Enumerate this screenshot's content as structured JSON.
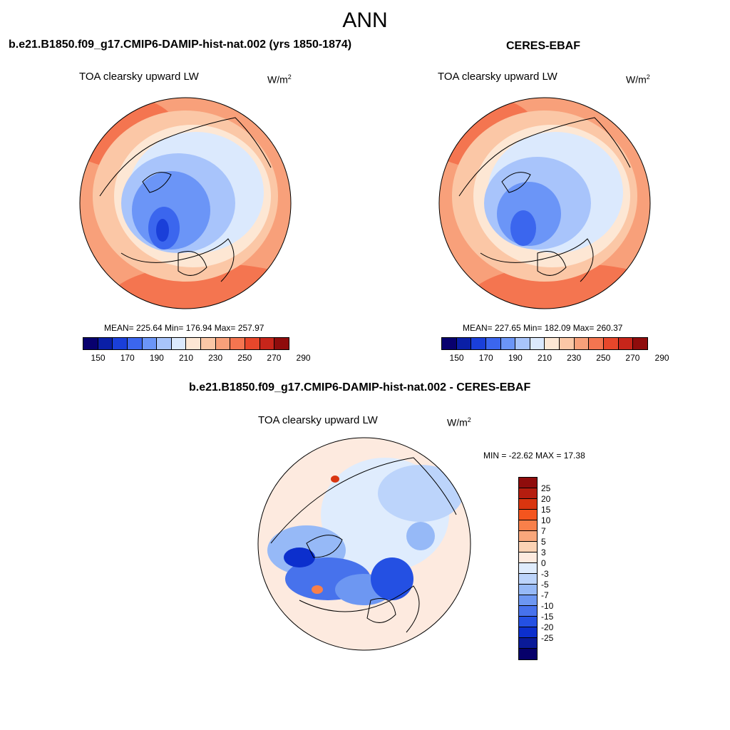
{
  "title": "ANN",
  "panels": [
    {
      "title": "b.e21.B1850.f09_g17.CMIP6-DAMIP-hist-nat.002 (yrs 1850-1874)",
      "variable": "TOA clearsky upward LW",
      "units_base": "W/m",
      "units_exp": "2",
      "stats": "MEAN= 225.64  Min= 176.94  Max= 257.97"
    },
    {
      "title": "CERES-EBAF",
      "variable": "TOA clearsky upward LW",
      "units_base": "W/m",
      "units_exp": "2",
      "stats": "MEAN= 227.65  Min= 182.09  Max= 260.37"
    },
    {
      "title": "b.e21.B1850.f09_g17.CMIP6-DAMIP-hist-nat.002 - CERES-EBAF",
      "variable": "TOA clearsky upward LW",
      "units_base": "W/m",
      "units_exp": "2",
      "stats": "MIN = -22.62 MAX =  17.38"
    }
  ],
  "colorbar_main": {
    "colors": [
      "#08006e",
      "#0a1fa6",
      "#1a3fd9",
      "#3b66ee",
      "#6b95f7",
      "#a8c4fb",
      "#dbe9fd",
      "#fde7d4",
      "#fbc7a6",
      "#f8a07a",
      "#f47550",
      "#e8472b",
      "#c7251a",
      "#8f0c0c"
    ],
    "labels": [
      "150",
      "170",
      "190",
      "210",
      "230",
      "250",
      "270",
      "290"
    ]
  },
  "colorbar_diff": {
    "colors": [
      "#8f0c0c",
      "#b51d0f",
      "#d9350f",
      "#f4551e",
      "#f8804a",
      "#f9a77b",
      "#fbd2b4",
      "#fdeadf",
      "#dfecfd",
      "#bcd4fb",
      "#96b9f7",
      "#6d97f2",
      "#4772ec",
      "#2450e3",
      "#0c2fcd",
      "#0a1a98",
      "#06006a"
    ],
    "labels": [
      "25",
      "20",
      "15",
      "10",
      "7",
      "5",
      "3",
      "0",
      "-3",
      "-5",
      "-7",
      "-10",
      "-15",
      "-20",
      "-25"
    ]
  }
}
